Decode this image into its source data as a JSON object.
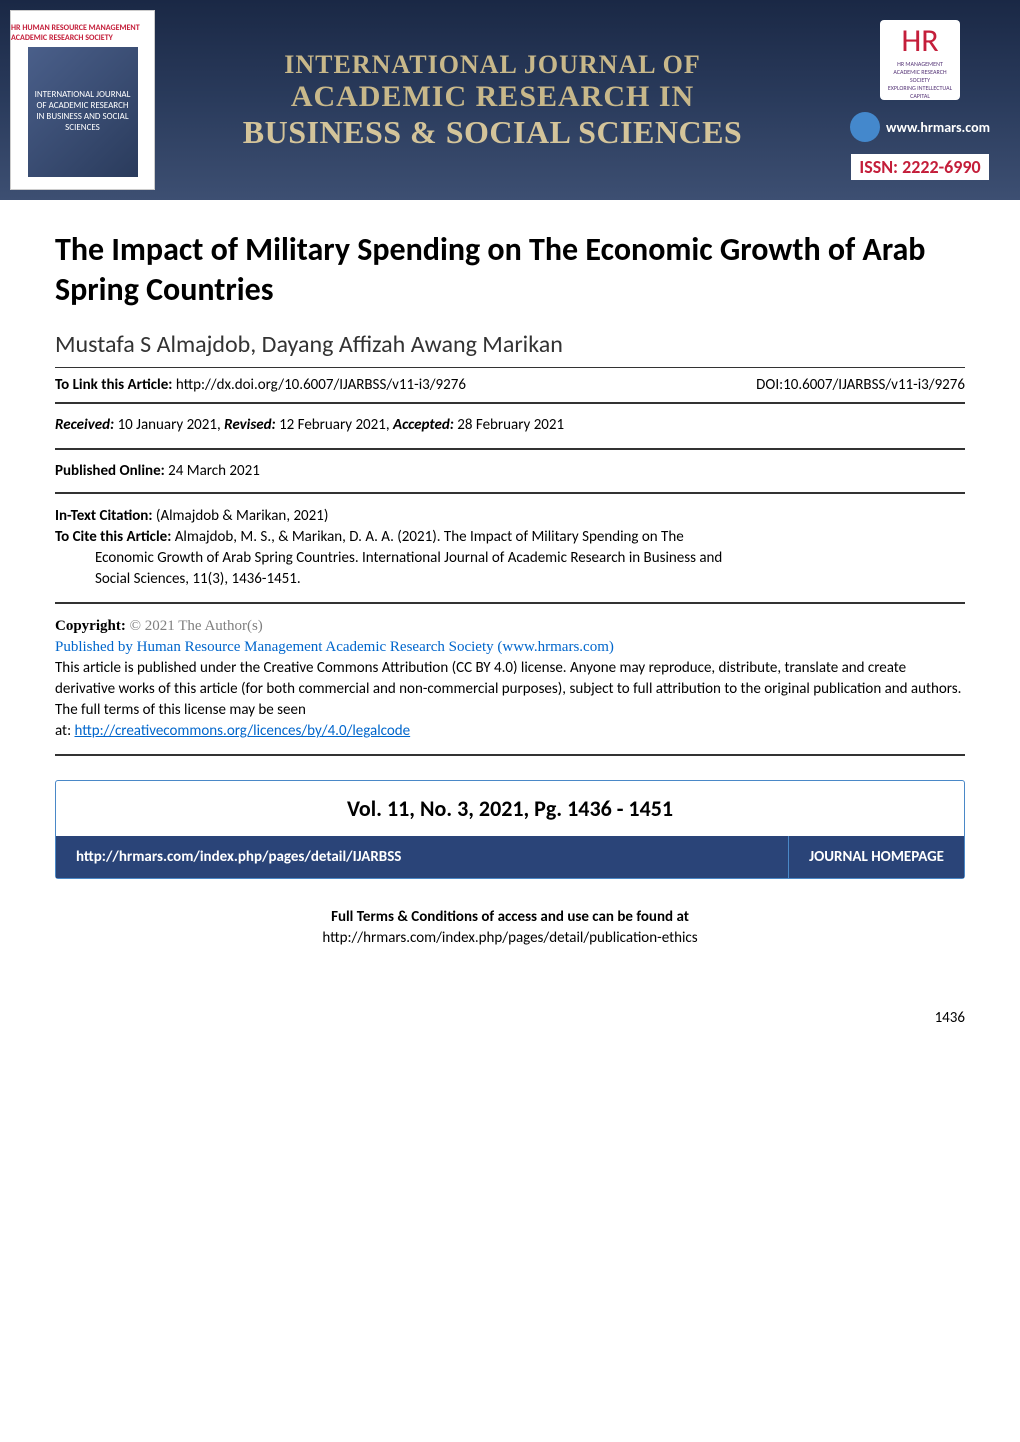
{
  "banner": {
    "left_logo_top": "HR HUMAN RESOURCE MANAGEMENT ACADEMIC RESEARCH SOCIETY",
    "left_logo_inner": "INTERNATIONAL JOURNAL OF ACADEMIC RESEARCH IN BUSINESS AND SOCIAL SCIENCES",
    "title_top": "INTERNATIONAL JOURNAL OF",
    "title_mid": "ACADEMIC RESEARCH IN",
    "title_bot": "BUSINESS & SOCIAL SCIENCES",
    "right_logo_lines": "HR MANAGEMENT ACADEMIC RESEARCH SOCIETY",
    "right_tagline": "EXPLORING INTELLECTUAL CAPITAL",
    "url": "www.hrmars.com",
    "issn": "ISSN: 2222-6990"
  },
  "article": {
    "title": "The Impact of Military Spending on The Economic Growth of Arab Spring Countries",
    "authors": "Mustafa S Almajdob, Dayang Affizah Awang Marikan",
    "link_label": "To Link this Article:",
    "link_url": "http://dx.doi.org/10.6007/IJARBSS/v11-i3/9276",
    "doi": "DOI:10.6007/IJARBSS/v11-i3/9276",
    "received_label": "Received:",
    "received_value": " 10 January 2021,",
    "revised_label": "Revised:",
    "revised_value": " 12 February 2021,",
    "accepted_label": "Accepted:",
    "accepted_value": " 28 February 2021",
    "published_label": "Published Online:",
    "published_value": " 24 March 2021",
    "intext_label": "In-Text Citation:",
    "intext_value": " (Almajdob & Marikan, 2021)",
    "tocite_label": "To Cite this Article:",
    "tocite_line1": " Almajdob, M. S., & Marikan, D. A. A. (2021). The Impact of Military Spending on The",
    "tocite_line2": "Economic Growth of Arab Spring Countries. International Journal of Academic Research in Business and",
    "tocite_line3": "Social Sciences, 11(3), 1436-1451."
  },
  "copyright": {
    "label": "Copyright:",
    "gray": " © 2021 The Author(s)",
    "blue": "Published by Human Resource Management Academic Research Society (www.hrmars.com)",
    "body1": "This article is published under the Creative Commons Attribution (CC BY 4.0) license. Anyone may reproduce, distribute, translate and create derivative works of this article (for both commercial and non-commercial purposes), subject to full attribution to the original publication and authors. The full terms of this license may be seen",
    "body2_prefix": "at: ",
    "link": "http://creativecommons.org/licences/by/4.0/legalcode"
  },
  "volbox": {
    "vol_line": "Vol. 11, No. 3, 2021, Pg. 1436 - 1451",
    "homepage_url": "http://hrmars.com/index.php/pages/detail/IJARBSS",
    "homepage_label": "JOURNAL HOMEPAGE"
  },
  "terms": {
    "title": "Full Terms & Conditions of access and use can be found at",
    "url": "http://hrmars.com/index.php/pages/detail/publication-ethics"
  },
  "page_number": "1436",
  "colors": {
    "banner_gradient_top": "#1a2845",
    "banner_gradient_bot": "#3d4f72",
    "banner_title_color": "#c8b88a",
    "issn_color": "#c41e3a",
    "homepage_bg": "#2a4478",
    "box_border": "#4a88c7",
    "link_blue": "#0066cc",
    "gray_text": "#808080"
  },
  "typography": {
    "body_font": "Calibri, Arial, sans-serif",
    "serif_font": "Times New Roman, serif",
    "article_title_size": 32,
    "authors_size": 24,
    "body_size": 15,
    "vol_line_size": 22
  }
}
